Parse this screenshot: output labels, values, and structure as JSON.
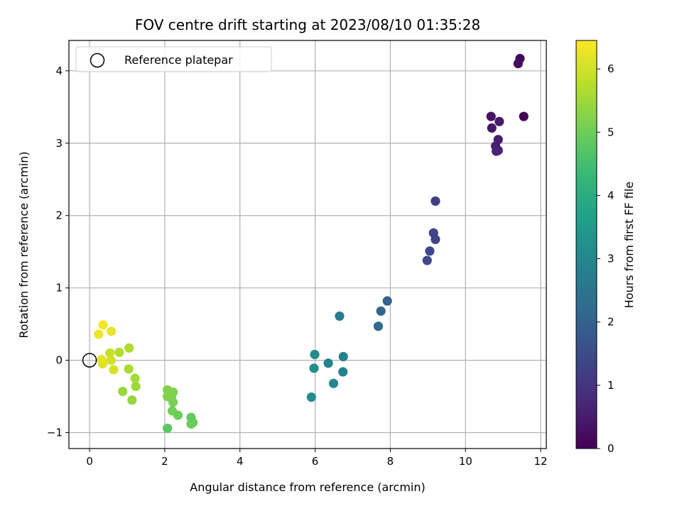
{
  "chart_data": {
    "type": "scatter",
    "title": "FOV centre drift starting at 2023/08/10 01:35:28",
    "xlabel": "Angular distance from reference (arcmin)",
    "ylabel": "Rotation from reference (arcmin)",
    "colorbar_label": "Hours from first FF file",
    "xlim": [
      -0.55,
      12.15
    ],
    "ylim": [
      -1.22,
      4.42
    ],
    "clim": [
      0,
      6.45
    ],
    "xticks": [
      0,
      2,
      4,
      6,
      8,
      10,
      12
    ],
    "yticks": [
      -1,
      0,
      1,
      2,
      3,
      4
    ],
    "colorbar_ticks": [
      0,
      1,
      2,
      3,
      4,
      5,
      6
    ],
    "grid": true,
    "legend": {
      "position": "top-left",
      "entries": [
        {
          "label": "Reference platepar",
          "marker": "open-circle"
        }
      ]
    },
    "reference_point": {
      "x": 0,
      "y": 0
    },
    "colormap": "viridis",
    "points": [
      {
        "x": 11.55,
        "y": 3.37,
        "t": 0.0
      },
      {
        "x": 11.45,
        "y": 4.17,
        "t": 0.1
      },
      {
        "x": 11.4,
        "y": 4.1,
        "t": 0.2
      },
      {
        "x": 10.68,
        "y": 3.37,
        "t": 0.3
      },
      {
        "x": 10.7,
        "y": 3.21,
        "t": 0.4
      },
      {
        "x": 10.9,
        "y": 3.3,
        "t": 0.45
      },
      {
        "x": 10.87,
        "y": 3.05,
        "t": 0.5
      },
      {
        "x": 10.8,
        "y": 2.96,
        "t": 0.55
      },
      {
        "x": 10.87,
        "y": 2.9,
        "t": 0.6
      },
      {
        "x": 10.82,
        "y": 2.89,
        "t": 0.65
      },
      {
        "x": 9.2,
        "y": 2.2,
        "t": 1.2
      },
      {
        "x": 9.15,
        "y": 1.76,
        "t": 1.3
      },
      {
        "x": 9.2,
        "y": 1.67,
        "t": 1.35
      },
      {
        "x": 9.05,
        "y": 1.51,
        "t": 1.4
      },
      {
        "x": 8.98,
        "y": 1.38,
        "t": 1.45
      },
      {
        "x": 7.92,
        "y": 0.82,
        "t": 2.0
      },
      {
        "x": 7.75,
        "y": 0.68,
        "t": 2.1
      },
      {
        "x": 7.68,
        "y": 0.47,
        "t": 2.2
      },
      {
        "x": 6.65,
        "y": 0.61,
        "t": 2.7
      },
      {
        "x": 6.75,
        "y": 0.05,
        "t": 2.8
      },
      {
        "x": 6.74,
        "y": -0.16,
        "t": 2.85
      },
      {
        "x": 6.35,
        "y": -0.04,
        "t": 2.95
      },
      {
        "x": 6.49,
        "y": -0.32,
        "t": 3.0
      },
      {
        "x": 5.99,
        "y": 0.08,
        "t": 3.1
      },
      {
        "x": 5.97,
        "y": -0.11,
        "t": 3.15
      },
      {
        "x": 5.9,
        "y": -0.51,
        "t": 3.2
      },
      {
        "x": 2.07,
        "y": -0.94,
        "t": 4.8
      },
      {
        "x": 2.7,
        "y": -0.79,
        "t": 4.85
      },
      {
        "x": 2.75,
        "y": -0.86,
        "t": 4.9
      },
      {
        "x": 2.7,
        "y": -0.88,
        "t": 4.95
      },
      {
        "x": 2.35,
        "y": -0.76,
        "t": 5.0
      },
      {
        "x": 2.2,
        "y": -0.7,
        "t": 5.05
      },
      {
        "x": 2.22,
        "y": -0.58,
        "t": 5.1
      },
      {
        "x": 2.18,
        "y": -0.5,
        "t": 5.15
      },
      {
        "x": 2.22,
        "y": -0.44,
        "t": 5.15
      },
      {
        "x": 2.07,
        "y": -0.5,
        "t": 5.2
      },
      {
        "x": 2.07,
        "y": -0.41,
        "t": 5.2
      },
      {
        "x": 1.13,
        "y": -0.55,
        "t": 5.4
      },
      {
        "x": 0.88,
        "y": -0.43,
        "t": 5.45
      },
      {
        "x": 1.23,
        "y": -0.36,
        "t": 5.5
      },
      {
        "x": 1.21,
        "y": -0.25,
        "t": 5.55
      },
      {
        "x": 1.04,
        "y": -0.12,
        "t": 5.6
      },
      {
        "x": 1.05,
        "y": 0.17,
        "t": 5.65
      },
      {
        "x": 0.79,
        "y": 0.11,
        "t": 5.7
      },
      {
        "x": 0.54,
        "y": 0.1,
        "t": 5.9
      },
      {
        "x": 0.57,
        "y": 0.0,
        "t": 6.0
      },
      {
        "x": 0.64,
        "y": -0.13,
        "t": 6.05
      },
      {
        "x": 0.35,
        "y": -0.05,
        "t": 6.15
      },
      {
        "x": 0.32,
        "y": 0.01,
        "t": 6.2
      },
      {
        "x": 0.58,
        "y": 0.4,
        "t": 6.25
      },
      {
        "x": 0.24,
        "y": 0.36,
        "t": 6.3
      },
      {
        "x": 0.36,
        "y": 0.49,
        "t": 6.4
      }
    ]
  }
}
